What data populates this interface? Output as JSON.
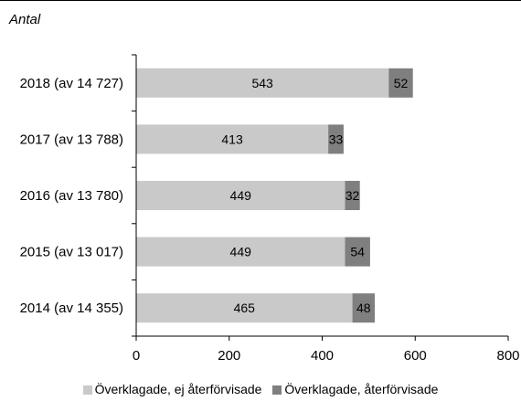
{
  "unit_label": "Antal",
  "colors": {
    "series1": "#c9c9c9",
    "series2": "#7f7f7f",
    "axis": "#000000"
  },
  "chart_data": {
    "type": "bar",
    "orientation": "horizontal",
    "stacked": true,
    "categories": [
      "2018 (av 14 727)",
      "2017 (av 13 788)",
      "2016 (av 13 780)",
      "2015 (av 13 017)",
      "2014 (av 14 355)"
    ],
    "series": [
      {
        "name": "Överklagade, ej återförvisade",
        "values": [
          543,
          413,
          449,
          449,
          465
        ]
      },
      {
        "name": "Överklagade, återförvisade",
        "values": [
          52,
          33,
          32,
          54,
          48
        ]
      }
    ],
    "xlim": [
      0,
      800
    ],
    "xticks": [
      "0",
      "200",
      "400",
      "600",
      "800"
    ],
    "grid": false,
    "legend_position": "bottom"
  }
}
